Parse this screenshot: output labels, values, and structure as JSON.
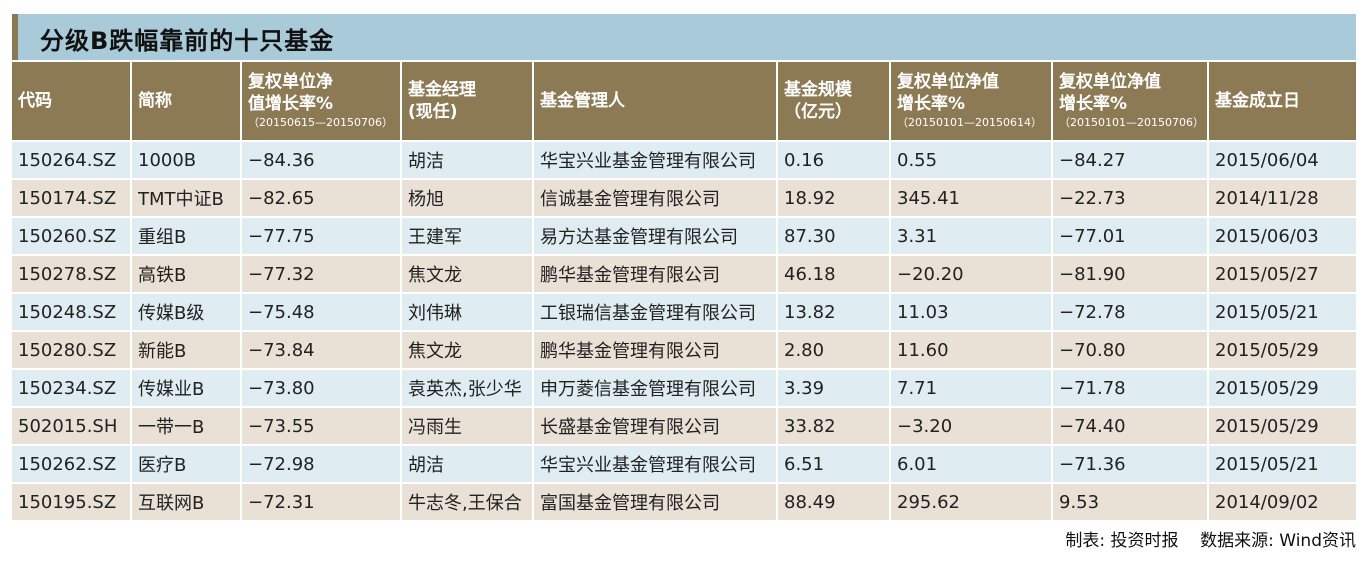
{
  "title": "分级B跌幅靠前的十只基金",
  "headers": {
    "code": "代码",
    "name": "简称",
    "nav_growth_recent": [
      "复权单位净",
      "值增长率%",
      "（20150615—20150706）"
    ],
    "manager": [
      "基金经理",
      "(现任)"
    ],
    "company": "基金管理人",
    "size": [
      "基金规模",
      "（亿元）"
    ],
    "nav_growth_h1": [
      "复权单位净值",
      "增长率%",
      "（20150101—20150614）"
    ],
    "nav_growth_ytd": [
      "复权单位净值",
      "增长率%",
      "（20150101—20150706）"
    ],
    "inception": "基金成立日"
  },
  "rows": [
    [
      "150264.SZ",
      "1000B",
      "−84.36",
      "胡洁",
      "华宝兴业基金管理有限公司",
      "0.16",
      "0.55",
      "−84.27",
      "2015/06/04"
    ],
    [
      "150174.SZ",
      "TMT中证B",
      "−82.65",
      "杨旭",
      "信诚基金管理有限公司",
      "18.92",
      "345.41",
      "−22.73",
      "2014/11/28"
    ],
    [
      "150260.SZ",
      "重组B",
      "−77.75",
      "王建军",
      "易方达基金管理有限公司",
      "87.30",
      "3.31",
      "−77.01",
      "2015/06/03"
    ],
    [
      "150278.SZ",
      "高铁B",
      "−77.32",
      "焦文龙",
      "鹏华基金管理有限公司",
      "46.18",
      "−20.20",
      "−81.90",
      "2015/05/27"
    ],
    [
      "150248.SZ",
      "传媒B级",
      "−75.48",
      "刘伟琳",
      "工银瑞信基金管理有限公司",
      "13.82",
      "11.03",
      "−72.78",
      "2015/05/21"
    ],
    [
      "150280.SZ",
      "新能B",
      "−73.84",
      "焦文龙",
      "鹏华基金管理有限公司",
      "2.80",
      "11.60",
      "−70.80",
      "2015/05/29"
    ],
    [
      "150234.SZ",
      "传媒业B",
      "−73.80",
      "袁英杰,张少华",
      "申万菱信基金管理有限公司",
      "3.39",
      "7.71",
      "−71.78",
      "2015/05/29"
    ],
    [
      "502015.SH",
      "一带一B",
      "−73.55",
      "冯雨生",
      "长盛基金管理有限公司",
      "33.82",
      "−3.20",
      "−74.40",
      "2015/05/29"
    ],
    [
      "150262.SZ",
      "医疗B",
      "−72.98",
      "胡洁",
      "华宝兴业基金管理有限公司",
      "6.51",
      "6.01",
      "−71.36",
      "2015/05/21"
    ],
    [
      "150195.SZ",
      "互联网B",
      "−72.31",
      "牛志冬,王保合",
      "富国基金管理有限公司",
      "88.49",
      "295.62",
      "9.53",
      "2014/09/02"
    ]
  ],
  "footer": {
    "made_by": "制表: 投资时报",
    "source": "数据来源: Wind资讯"
  },
  "colors": {
    "title_bar_bg": "#a9cbd9",
    "title_accent": "#8c7a55",
    "header_bg": "#8c7a55",
    "row_light": "#dfecf1",
    "row_tan": "#e9e1d6"
  }
}
